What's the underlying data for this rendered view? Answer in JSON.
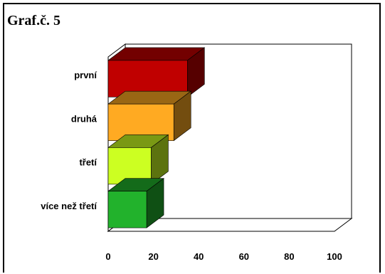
{
  "chart_data": {
    "type": "bar",
    "orientation": "horizontal",
    "title": "Graf.č. 5",
    "categories": [
      "první",
      "druhá",
      "třetí",
      "více než třetí"
    ],
    "values": [
      35,
      29,
      19,
      17
    ],
    "colors": [
      "#c00000",
      "#ffaa22",
      "#ccff22",
      "#22b22c"
    ],
    "xlim": [
      0,
      100
    ],
    "xticks": [
      "0",
      "20",
      "40",
      "60",
      "80",
      "100"
    ],
    "xlabel": "",
    "ylabel": "",
    "grid": false,
    "style": "3d"
  }
}
